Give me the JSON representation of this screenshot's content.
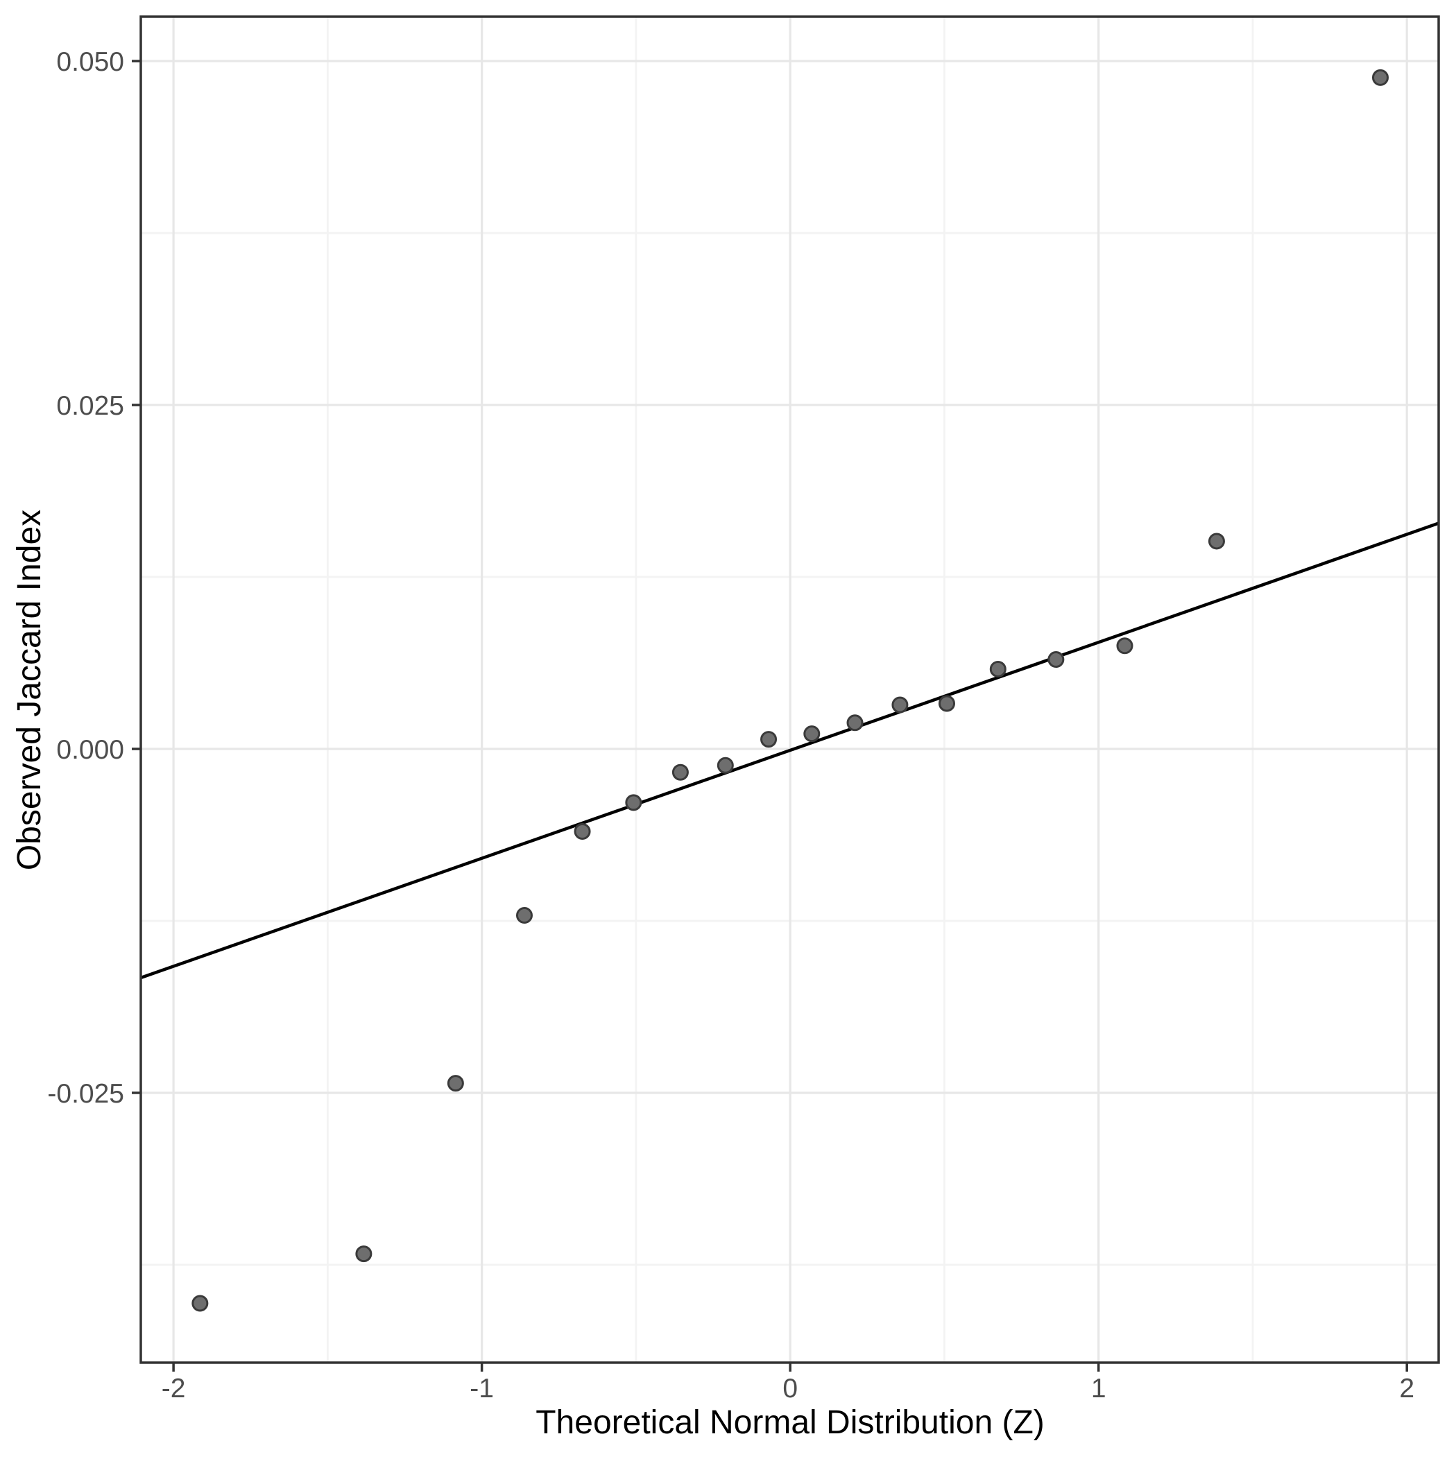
{
  "chart_data": {
    "type": "scatter",
    "title": "",
    "xlabel": "Theoretical Normal Distribution (Z)",
    "ylabel": "Observed Jaccard Index",
    "legend_position": "none",
    "grid": "major+minor",
    "x_axis": {
      "tick_values": [
        -2,
        -1,
        0,
        1,
        2
      ],
      "tick_labels": [
        "-2",
        "-1",
        "0",
        "1",
        "2"
      ],
      "minor_tick_values": [
        -1.5,
        -0.5,
        0.5,
        1.5
      ],
      "range": [
        -2.106,
        2.103
      ]
    },
    "y_axis": {
      "tick_values": [
        0.05,
        0.025,
        0.0,
        -0.025
      ],
      "tick_labels": [
        "0.050",
        "0.025",
        "0.000",
        "-0.025"
      ],
      "minor_tick_values": [
        0.0375,
        0.0125,
        -0.0125,
        -0.0375
      ],
      "range": [
        -0.04461,
        0.05323
      ]
    },
    "points": [
      {
        "z": -1.914,
        "jaccard": -0.0403
      },
      {
        "z": -1.383,
        "jaccard": -0.0367
      },
      {
        "z": -1.085,
        "jaccard": -0.0243
      },
      {
        "z": -0.862,
        "jaccard": -0.0121
      },
      {
        "z": -0.674,
        "jaccard": -0.006
      },
      {
        "z": -0.508,
        "jaccard": -0.0039
      },
      {
        "z": -0.356,
        "jaccard": -0.0017
      },
      {
        "z": -0.21,
        "jaccard": -0.0012
      },
      {
        "z": -0.07,
        "jaccard": 0.0007
      },
      {
        "z": 0.07,
        "jaccard": 0.0011
      },
      {
        "z": 0.21,
        "jaccard": 0.0019
      },
      {
        "z": 0.356,
        "jaccard": 0.0032
      },
      {
        "z": 0.508,
        "jaccard": 0.0033
      },
      {
        "z": 0.674,
        "jaccard": 0.0058
      },
      {
        "z": 0.862,
        "jaccard": 0.0065
      },
      {
        "z": 1.085,
        "jaccard": 0.0075
      },
      {
        "z": 1.383,
        "jaccard": 0.0151
      },
      {
        "z": 1.914,
        "jaccard": 0.0488
      }
    ],
    "qq_line": {
      "slope": 0.00785,
      "intercept": -0.0001
    },
    "colors": {
      "point_fill": "#6e6e6e",
      "point_stroke": "#3a3a3a",
      "line": "#000000",
      "grid_major": "#e7e7e7",
      "grid_minor": "#f3f3f3",
      "panel_border": "#333333",
      "tick_mark": "#333333",
      "tick_label": "#4d4d4d",
      "axis_title": "#000000",
      "background": "#ffffff"
    }
  }
}
